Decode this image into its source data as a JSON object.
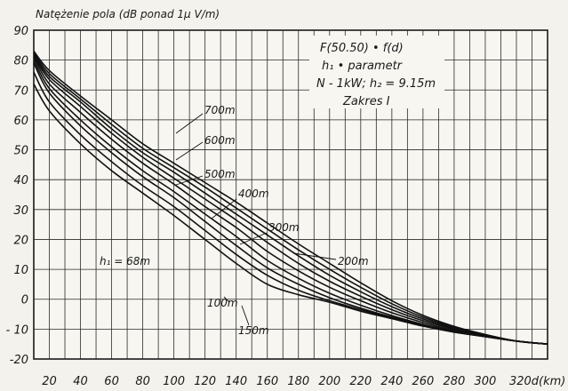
{
  "chart_data": {
    "type": "line",
    "title": "Natężenie pola (dB ponad 1μ V/m)",
    "ylabel": "Natężenie pola (dB ponad 1μ V/m)",
    "xlabel": "d(km)",
    "xlim": [
      10,
      340
    ],
    "ylim": [
      -20,
      90
    ],
    "x_ticks": [
      20,
      40,
      60,
      80,
      100,
      120,
      140,
      160,
      180,
      200,
      220,
      240,
      260,
      280,
      300,
      320
    ],
    "y_ticks": [
      90,
      80,
      70,
      60,
      50,
      40,
      30,
      20,
      10,
      0,
      -10,
      -20
    ],
    "x_tick_labels": [
      "20",
      "40",
      "60",
      "80",
      "100",
      "120",
      "140",
      "160",
      "180",
      "200",
      "220",
      "240",
      "260",
      "280",
      "300",
      "320"
    ],
    "y_tick_labels": [
      "90",
      "80",
      "70",
      "60",
      "50",
      "40",
      "30",
      "20",
      "10",
      "0",
      "- 10",
      "-20"
    ],
    "last_x_label": "320d(km)",
    "legend": [
      "F(50.50) • f(d)",
      "h₁ • parametr",
      "N - 1kW; h₂ = 9.15m",
      "Zakres I"
    ],
    "grid": true,
    "x": [
      10,
      20,
      40,
      60,
      80,
      100,
      120,
      140,
      160,
      180,
      200,
      220,
      240,
      260,
      280,
      300,
      320,
      340
    ],
    "series": [
      {
        "name": "h₁ = 68m",
        "values": [
          72,
          63,
          52,
          43,
          35.5,
          28,
          20,
          12,
          5,
          1.5,
          -1,
          -4,
          -6.5,
          -9,
          -11,
          -12.5,
          -14,
          -15
        ]
      },
      {
        "name": "100m",
        "values": [
          76,
          66,
          55,
          46,
          38,
          31,
          23,
          15,
          8,
          3,
          -0.5,
          -3.5,
          -6.3,
          -8.8,
          -11,
          -12.5,
          -14,
          -15
        ]
      },
      {
        "name": "150m",
        "values": [
          79,
          69,
          58,
          49,
          41,
          34,
          26,
          18,
          10.5,
          5,
          0.5,
          -3,
          -6,
          -8.6,
          -10.8,
          -12.5,
          -14,
          -15
        ]
      },
      {
        "name": "200m",
        "values": [
          80,
          70.5,
          60,
          51,
          43,
          36,
          28.5,
          21,
          13,
          7,
          2,
          -2,
          -5.5,
          -8.4,
          -10.7,
          -12.4,
          -14,
          -15
        ]
      },
      {
        "name": "300m",
        "values": [
          81,
          72,
          62.5,
          53.5,
          45.5,
          38.5,
          31,
          24,
          16,
          9.5,
          4,
          -0.5,
          -4.5,
          -7.8,
          -10.4,
          -12.3,
          -14,
          -15
        ]
      },
      {
        "name": "400m",
        "values": [
          81.5,
          73.5,
          64.5,
          55.5,
          47.5,
          40.5,
          33.5,
          26.5,
          19,
          12,
          6,
          1,
          -3.5,
          -7.2,
          -10,
          -12.1,
          -14,
          -15
        ]
      },
      {
        "name": "500m",
        "values": [
          82,
          74.5,
          66,
          57,
          49,
          42.5,
          35.5,
          28.5,
          21.5,
          14.5,
          8,
          2.5,
          -2.5,
          -6.6,
          -9.7,
          -12,
          -14,
          -15
        ]
      },
      {
        "name": "600m",
        "values": [
          82.5,
          75.5,
          67,
          58.5,
          50.5,
          44,
          37.5,
          30.5,
          23.5,
          16.5,
          10,
          4,
          -1.5,
          -6,
          -9.4,
          -11.9,
          -14,
          -15
        ]
      },
      {
        "name": "700m",
        "values": [
          83,
          76.5,
          68,
          60,
          52,
          45.5,
          39,
          32.5,
          25.5,
          18.5,
          12,
          5.5,
          -0.5,
          -5.4,
          -9.1,
          -11.8,
          -14,
          -15
        ]
      }
    ]
  }
}
